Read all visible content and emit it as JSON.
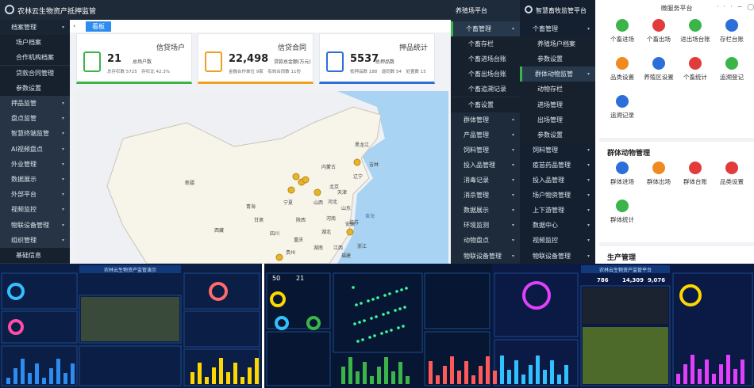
{
  "admin": {
    "title": "农林云生物资产抵押监管",
    "tab": "看板",
    "menu": [
      "档案管理",
      "场户档案",
      "合作机构档案",
      "贷款合同管理",
      "参数设置",
      "押品监管",
      "盘点监管",
      "智慧终端监管",
      "AI视频盘点",
      "外业管理",
      "数据展示",
      "外部平台",
      "视频监控",
      "物联设备管理",
      "组织管理",
      "基础信息"
    ],
    "cards": [
      {
        "title": "信贷场户",
        "value": "21",
        "label": "总场户数",
        "detail": "总存栏数 5725　存栏比 42.3%"
      },
      {
        "title": "信贷合同",
        "value": "22,498",
        "label": "贷款总金额(万元)",
        "detail": "金融合作单位 9家　有效合同数 11份"
      },
      {
        "title": "押品统计",
        "value": "5537",
        "label": "总押品数",
        "detail": "抵押品数 188　逼同数 54　处置数 15"
      }
    ],
    "map_labels": [
      "黑龙江",
      "吉林",
      "内蒙古",
      "辽宁",
      "北京",
      "天津",
      "河北",
      "山西",
      "山东",
      "黄海",
      "新疆",
      "青海",
      "宁夏",
      "甘肃",
      "陕西",
      "河南",
      "西藏",
      "四川",
      "重庆",
      "湖北",
      "安徽",
      "江苏",
      "浙江",
      "江西",
      "湖南",
      "福建",
      "贵州"
    ]
  },
  "farm": {
    "title": "养殖场平台",
    "menu": [
      "个畜管理",
      "个畜存栏",
      "个畜进场台账",
      "个畜出场台账",
      "个畜追溯记录",
      "个畜设置",
      "群体管理",
      "产品管理",
      "饲料管理",
      "投入品管理",
      "消毒记录",
      "消杀管理",
      "数据展示",
      "环境监测",
      "动物盘点",
      "物联设备管理"
    ]
  },
  "livestock": {
    "title": "智慧畜牧监管平台",
    "menu": [
      "个畜管理",
      "养殖场户档案",
      "参数设置",
      "群体动物监管",
      "动物存栏",
      "进场管理",
      "出场管理",
      "参数设置",
      "饲料管理",
      "疫苗药品管理",
      "投入品管理",
      "场户物资管理",
      "上下游管理",
      "数据中心",
      "视频监控",
      "物联设备管理"
    ]
  },
  "micro": {
    "title": "微服务平台",
    "groups": [
      {
        "items": [
          "个畜进场",
          "个畜出场",
          "进出场台账",
          "存栏台账",
          "品类设置",
          "养殖区设置",
          "个畜统计",
          "追溯登记",
          "追溯记录"
        ]
      },
      {
        "title": "群体动物管理",
        "items": [
          "群体进场",
          "群体出场",
          "群体台账",
          "品类设置",
          "群体统计"
        ]
      },
      {
        "title": "生产管理",
        "items": []
      }
    ]
  },
  "dashboards": [
    {
      "title": "农林云生物资产监管演示"
    },
    {
      "numbers": [
        "50",
        "21"
      ]
    },
    {
      "title": "农林云生物资产监管平台",
      "numbers": [
        "786",
        "14,309",
        "9,076"
      ]
    }
  ]
}
